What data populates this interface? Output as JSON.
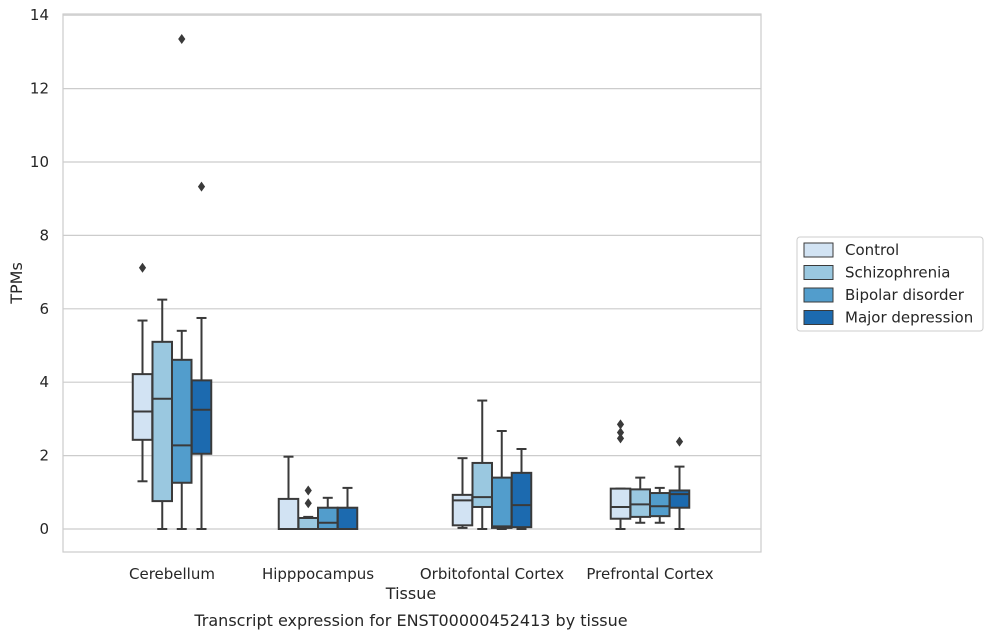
{
  "chart_data": {
    "type": "boxplot",
    "title": "",
    "caption": "Transcript expression for ENST00000452413 by tissue",
    "xlabel": "Tissue",
    "ylabel": "TPMs",
    "ylim": [
      -0.6,
      14.1
    ],
    "yticks": [
      0,
      2,
      4,
      6,
      8,
      10,
      12,
      14
    ],
    "grid": "horizontal",
    "legend_position": "right-outside",
    "categories": [
      "Cerebellum",
      "Hipppocampus",
      "Orbitofontal Cortex",
      "Prefrontal Cortex"
    ],
    "series": [
      {
        "name": "Control",
        "color": "#d2e3f3",
        "boxes": [
          {
            "whisker_low": 1.3,
            "q1": 2.43,
            "median": 3.2,
            "q3": 4.22,
            "whisker_high": 5.68,
            "outliers": [
              7.12
            ]
          },
          {
            "whisker_low": 0.0,
            "q1": 0.0,
            "median": 0.0,
            "q3": 0.82,
            "whisker_high": 1.97,
            "outliers": []
          },
          {
            "whisker_low": 0.03,
            "q1": 0.1,
            "median": 0.78,
            "q3": 0.93,
            "whisker_high": 1.93,
            "outliers": []
          },
          {
            "whisker_low": 0.0,
            "q1": 0.28,
            "median": 0.6,
            "q3": 1.1,
            "whisker_high": 1.1,
            "outliers": [
              2.47,
              2.63,
              2.85
            ]
          }
        ]
      },
      {
        "name": "Schizophrenia",
        "color": "#9ac8e0",
        "boxes": [
          {
            "whisker_low": 0.0,
            "q1": 0.76,
            "median": 3.55,
            "q3": 5.1,
            "whisker_high": 6.25,
            "outliers": []
          },
          {
            "whisker_low": 0.0,
            "q1": 0.0,
            "median": 0.0,
            "q3": 0.3,
            "whisker_high": 0.33,
            "outliers": [
              0.7,
              1.05
            ]
          },
          {
            "whisker_low": 0.0,
            "q1": 0.6,
            "median": 0.87,
            "q3": 1.8,
            "whisker_high": 3.5,
            "outliers": []
          },
          {
            "whisker_low": 0.17,
            "q1": 0.33,
            "median": 0.67,
            "q3": 1.08,
            "whisker_high": 1.4,
            "outliers": []
          }
        ]
      },
      {
        "name": "Bipolar disorder",
        "color": "#529dcc",
        "boxes": [
          {
            "whisker_low": 0.0,
            "q1": 1.26,
            "median": 2.28,
            "q3": 4.61,
            "whisker_high": 5.4,
            "outliers": [
              13.35
            ]
          },
          {
            "whisker_low": 0.0,
            "q1": 0.0,
            "median": 0.17,
            "q3": 0.58,
            "whisker_high": 0.85,
            "outliers": []
          },
          {
            "whisker_low": 0.0,
            "q1": 0.03,
            "median": 0.07,
            "q3": 1.4,
            "whisker_high": 2.67,
            "outliers": []
          },
          {
            "whisker_low": 0.17,
            "q1": 0.35,
            "median": 0.62,
            "q3": 0.98,
            "whisker_high": 1.12,
            "outliers": []
          }
        ]
      },
      {
        "name": "Major depression",
        "color": "#1c6aaf",
        "boxes": [
          {
            "whisker_low": 0.0,
            "q1": 2.05,
            "median": 3.25,
            "q3": 4.05,
            "whisker_high": 5.75,
            "outliers": [
              9.33
            ]
          },
          {
            "whisker_low": 0.0,
            "q1": 0.0,
            "median": 0.0,
            "q3": 0.58,
            "whisker_high": 1.12,
            "outliers": []
          },
          {
            "whisker_low": 0.0,
            "q1": 0.05,
            "median": 0.65,
            "q3": 1.53,
            "whisker_high": 2.18,
            "outliers": []
          },
          {
            "whisker_low": 0.0,
            "q1": 0.58,
            "median": 0.95,
            "q3": 1.05,
            "whisker_high": 1.7,
            "outliers": [
              2.38
            ]
          }
        ]
      }
    ]
  },
  "colors": {
    "grid": "#cccccc",
    "frame": "#cccccc",
    "edge": "#3a3a3a",
    "text": "#262626"
  }
}
